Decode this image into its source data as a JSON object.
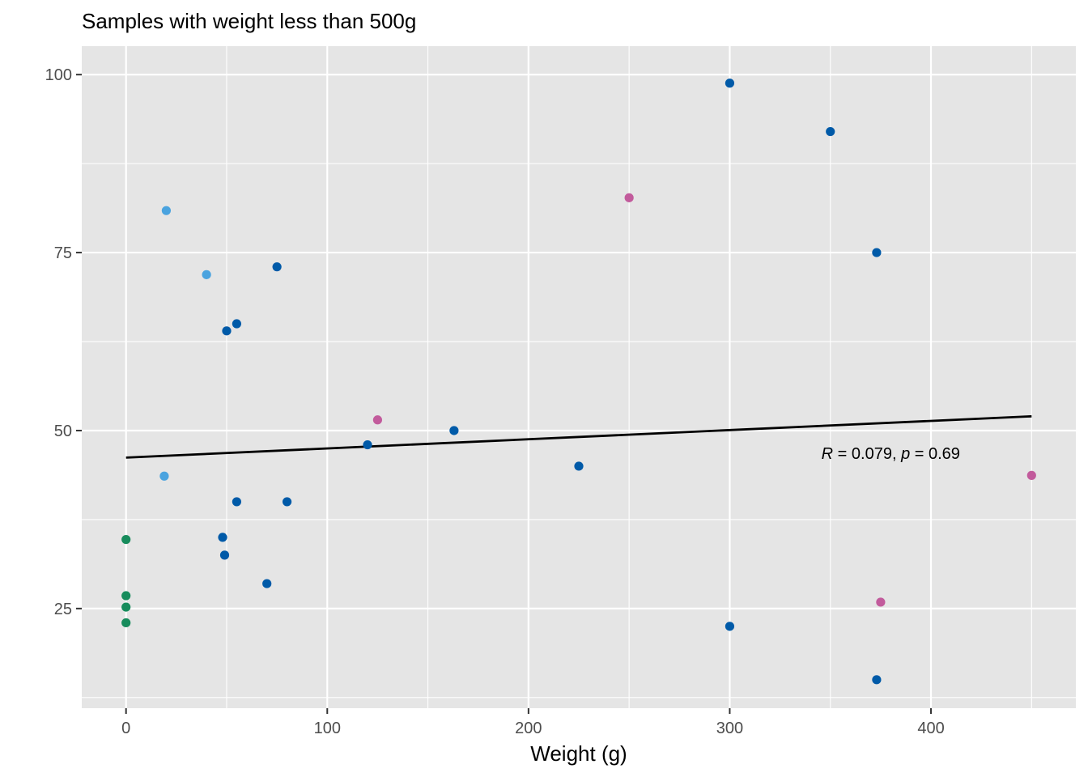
{
  "chart_data": {
    "type": "scatter",
    "title": "Samples with weight less than 500g",
    "xlabel": "Weight (g)",
    "ylabel": "",
    "xlim": [
      -22,
      472
    ],
    "ylim": [
      11,
      104
    ],
    "x_ticks": [
      0,
      100,
      200,
      300,
      400
    ],
    "y_ticks": [
      25,
      50,
      75,
      100
    ],
    "x_tick_labels": [
      "0",
      "100",
      "200",
      "300",
      "400"
    ],
    "y_tick_labels": [
      "25",
      "50",
      "75",
      "100"
    ],
    "grid": true,
    "legend": "none",
    "background": "#e5e5e5",
    "gridline_color": "#ffffff",
    "regression_line": {
      "x": [
        0,
        450
      ],
      "y": [
        46.2,
        52.0
      ],
      "color": "#000000"
    },
    "annotation": {
      "x": 380,
      "y": 46.8,
      "r_label": "R",
      "r_text": " = 0.079, ",
      "p_label": "p",
      "p_text": " = 0.69"
    },
    "groups": [
      {
        "color": "#005aa8",
        "points": [
          [
            300,
            98.8
          ],
          [
            350,
            92.0
          ],
          [
            373,
            75.0
          ],
          [
            75,
            73.0
          ],
          [
            55,
            65.0
          ],
          [
            50,
            64.0
          ],
          [
            163,
            50.0
          ],
          [
            120,
            48.0
          ],
          [
            225,
            45.0
          ],
          [
            55,
            40.0
          ],
          [
            80,
            40.0
          ],
          [
            48,
            35.0
          ],
          [
            49,
            32.5
          ],
          [
            70,
            28.5
          ],
          [
            300,
            22.5
          ],
          [
            373,
            15.0
          ]
        ]
      },
      {
        "color": "#4aa3df",
        "points": [
          [
            20,
            80.9
          ],
          [
            40,
            71.9
          ],
          [
            19,
            43.6
          ]
        ]
      },
      {
        "color": "#c25b9c",
        "points": [
          [
            250,
            82.7
          ],
          [
            125,
            51.5
          ],
          [
            450,
            43.7
          ],
          [
            375,
            25.9
          ]
        ]
      },
      {
        "color": "#178c5c",
        "points": [
          [
            0,
            34.7
          ],
          [
            0,
            26.8
          ],
          [
            0,
            25.2
          ],
          [
            0,
            23.0
          ]
        ]
      }
    ]
  }
}
